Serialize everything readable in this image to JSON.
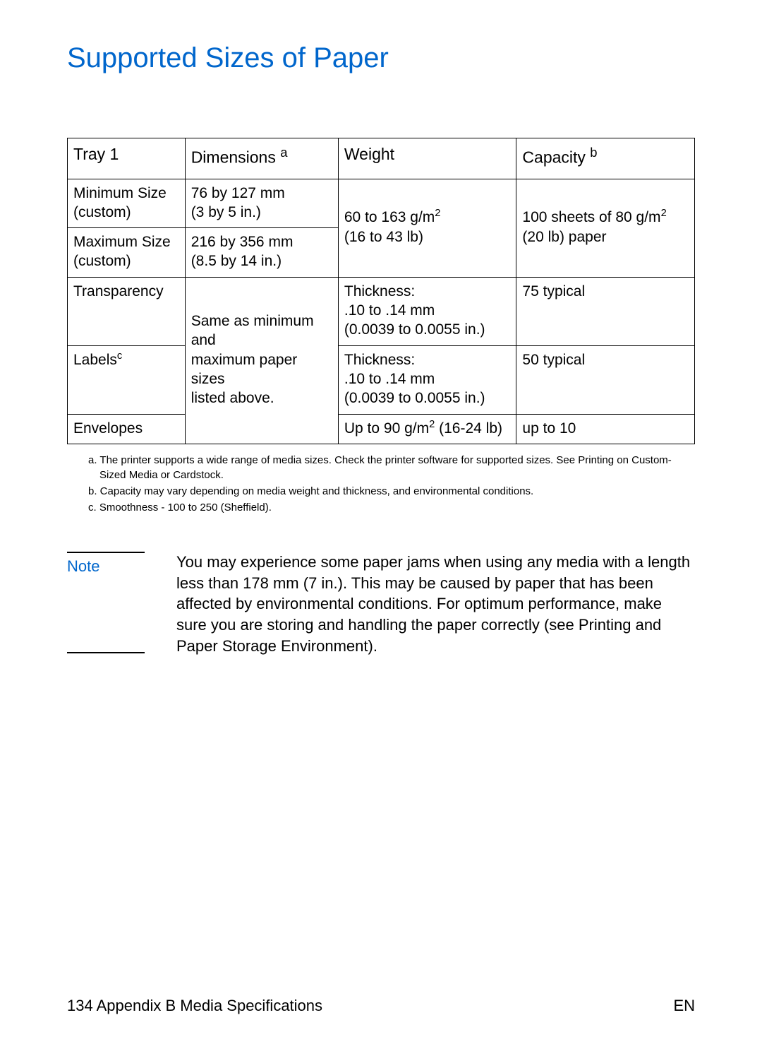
{
  "title": "Supported Sizes of Paper",
  "colors": {
    "accent": "#0066cc",
    "text": "#000000",
    "background": "#ffffff",
    "border": "#000000"
  },
  "table": {
    "headers": {
      "col1": "Tray 1",
      "col2": "Dimensions ",
      "col2_sup": "a",
      "col3": "Weight",
      "col4": "Capacity ",
      "col4_sup": "b"
    },
    "rows": {
      "min_size": {
        "label_line1": "Minimum Size",
        "label_line2": "(custom)",
        "dim_line1": "76 by 127 mm",
        "dim_line2": "(3 by 5 in.)"
      },
      "max_size": {
        "label_line1": "Maximum Size",
        "label_line2": "(custom)",
        "dim_line1": "216 by 356 mm",
        "dim_line2": "(8.5 by 14 in.)"
      },
      "weight_merged_line1": "60 to 163 g/m",
      "weight_merged_sup": "2",
      "weight_merged_line2": "(16 to 43 lb)",
      "capacity_merged_line1a": "100 sheets of 80 g/m",
      "capacity_merged_sup": "2",
      "capacity_merged_line2": "(20 lb) paper",
      "transparency": {
        "label": "Transparency",
        "weight_line1": "Thickness:",
        "weight_line2": ".10 to .14 mm",
        "weight_line3": "(0.0039 to 0.0055 in.)",
        "capacity": "75 typical"
      },
      "labels": {
        "label": "Labels",
        "label_sup": "c",
        "weight_line1": "Thickness:",
        "weight_line2": ".10 to .14 mm",
        "weight_line3": "(0.0039 to 0.0055 in.)",
        "capacity": "50 typical"
      },
      "dims_merged_line1": "Same as minimum and",
      "dims_merged_line2": "maximum paper sizes",
      "dims_merged_line3": "listed above.",
      "envelopes": {
        "label": "Envelopes",
        "weight_a": "Up to 90 g/m",
        "weight_sup": "2",
        "weight_b": " (16-24 lb)",
        "capacity": "up to 10"
      }
    }
  },
  "footnotes": {
    "a": "a. The printer supports a wide range of media sizes. Check the printer software for supported sizes. See Printing on Custom-Sized Media or Cardstock.",
    "b": "b. Capacity may vary depending on media weight and thickness, and environmental conditions.",
    "c": "c. Smoothness - 100 to 250 (Sheffield)."
  },
  "note": {
    "label": "Note",
    "text": "You may experience some paper jams when using any media with a length less than 178 mm (7 in.). This may be caused by paper that has been affected by environmental conditions. For optimum performance, make sure you are storing and handling the paper correctly (see Printing and Paper Storage Environment)."
  },
  "footer": {
    "left_page": "134",
    "left_text": " Appendix B Media Specifications",
    "right": "EN"
  }
}
